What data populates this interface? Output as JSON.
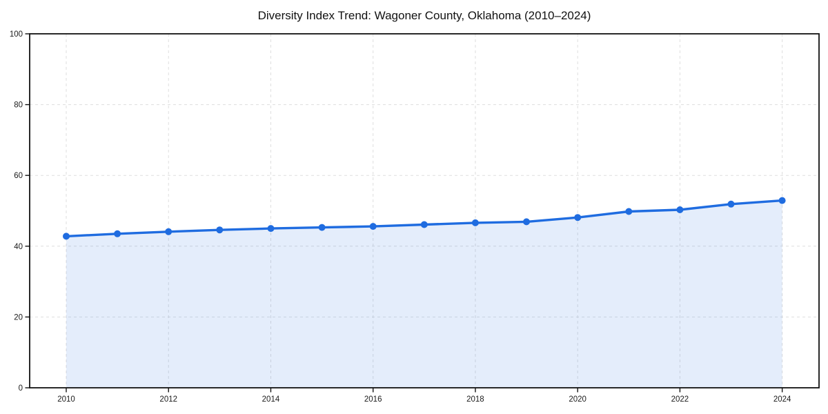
{
  "chart_data": {
    "type": "area",
    "title": "Diversity Index Trend: Wagoner County, Oklahoma (2010–2024)",
    "x": [
      2010,
      2011,
      2012,
      2013,
      2014,
      2015,
      2016,
      2017,
      2018,
      2019,
      2020,
      2021,
      2022,
      2023,
      2024
    ],
    "series": [
      {
        "name": "Diversity Index",
        "values": [
          42.8,
          43.5,
          44.1,
          44.6,
          45.0,
          45.3,
          45.6,
          46.1,
          46.6,
          46.9,
          48.1,
          49.8,
          50.3,
          51.9,
          52.9
        ]
      }
    ],
    "xlabel": "",
    "ylabel": "",
    "xlim": [
      2009.285,
      2024.72
    ],
    "ylim": [
      0,
      100
    ],
    "xticks": [
      "2010",
      "2012",
      "2014",
      "2016",
      "2018",
      "2020",
      "2022",
      "2024"
    ],
    "xtick_values": [
      2010,
      2012,
      2014,
      2016,
      2018,
      2020,
      2022,
      2024
    ],
    "yticks": [
      "0",
      "20",
      "40",
      "60",
      "80",
      "100"
    ],
    "ytick_values": [
      0,
      20,
      40,
      60,
      80,
      100
    ],
    "grid": {
      "visible": true,
      "style": "dashed",
      "color": "#dedede"
    },
    "legend": "none",
    "colors": {
      "line": "#1f6ce0",
      "marker": "#1f6ce0",
      "fill": "rgba(31,108,224,0.12)",
      "axis": "#111111",
      "tick_label": "#1a1a1a",
      "title": "#111111",
      "background": "#ffffff"
    }
  }
}
